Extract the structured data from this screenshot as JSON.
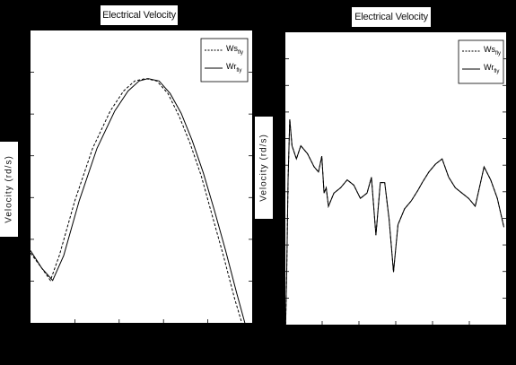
{
  "chart_data": [
    {
      "type": "line",
      "title": "Electrical Velocity",
      "ylabel": "Velocity (rd/s)",
      "xlabel": "",
      "grid": false,
      "legend_position": "top-right",
      "ylim": [
        0,
        1
      ],
      "xlim": [
        0,
        1
      ],
      "series": [
        {
          "name": "Ws",
          "subscript": "fly",
          "style": "dashed",
          "x": [
            0.0,
            0.05,
            0.09,
            0.13,
            0.2,
            0.28,
            0.36,
            0.42,
            0.47,
            0.52,
            0.57,
            0.62,
            0.67,
            0.72,
            0.77,
            0.82,
            0.87,
            0.92,
            0.96,
            0.99
          ],
          "y": [
            0.28,
            0.22,
            0.17,
            0.27,
            0.49,
            0.7,
            0.85,
            0.93,
            0.97,
            0.98,
            0.97,
            0.92,
            0.83,
            0.72,
            0.59,
            0.43,
            0.27,
            0.1,
            -0.02,
            -0.1
          ]
        },
        {
          "name": "Wr",
          "subscript": "fly",
          "style": "solid",
          "x": [
            0.0,
            0.05,
            0.1,
            0.15,
            0.22,
            0.3,
            0.38,
            0.44,
            0.49,
            0.53,
            0.58,
            0.63,
            0.68,
            0.73,
            0.78,
            0.83,
            0.88,
            0.93,
            0.97,
            1.0
          ],
          "y": [
            0.29,
            0.22,
            0.17,
            0.27,
            0.49,
            0.7,
            0.85,
            0.93,
            0.97,
            0.98,
            0.97,
            0.92,
            0.84,
            0.73,
            0.6,
            0.45,
            0.29,
            0.12,
            -0.01,
            -0.1
          ]
        }
      ]
    },
    {
      "type": "line",
      "title": "Electrical Velocity",
      "ylabel": "Velocity (rd/s)",
      "xlabel": "",
      "grid": false,
      "legend_position": "top-right",
      "ylim": [
        0,
        1
      ],
      "xlim": [
        0,
        1
      ],
      "series": [
        {
          "name": "Ws",
          "subscript": "fly",
          "style": "dashed",
          "x": [
            0.0,
            0.006,
            0.012,
            0.02,
            0.03,
            0.05,
            0.07,
            0.1,
            0.13,
            0.15,
            0.165,
            0.175,
            0.185,
            0.195,
            0.22,
            0.25,
            0.28,
            0.31,
            0.34,
            0.37,
            0.39,
            0.41,
            0.43,
            0.45,
            0.47,
            0.49,
            0.51,
            0.54,
            0.57,
            0.6,
            0.62,
            0.65,
            0.68,
            0.71,
            0.74,
            0.77,
            0.8,
            0.83,
            0.86,
            0.9,
            0.93,
            0.96,
            0.99
          ],
          "y": [
            -0.05,
            0.2,
            0.55,
            0.78,
            0.68,
            0.63,
            0.68,
            0.65,
            0.6,
            0.58,
            0.64,
            0.5,
            0.52,
            0.45,
            0.5,
            0.52,
            0.55,
            0.53,
            0.48,
            0.5,
            0.56,
            0.34,
            0.54,
            0.54,
            0.4,
            0.2,
            0.38,
            0.44,
            0.47,
            0.51,
            0.54,
            0.58,
            0.61,
            0.63,
            0.56,
            0.52,
            0.5,
            0.48,
            0.45,
            0.6,
            0.55,
            0.48,
            0.37
          ]
        },
        {
          "name": "Wr",
          "subscript": "fly",
          "style": "solid",
          "x": [
            0.0,
            0.006,
            0.012,
            0.02,
            0.03,
            0.05,
            0.07,
            0.1,
            0.13,
            0.15,
            0.165,
            0.175,
            0.185,
            0.195,
            0.22,
            0.25,
            0.28,
            0.31,
            0.34,
            0.37,
            0.39,
            0.41,
            0.43,
            0.45,
            0.47,
            0.49,
            0.51,
            0.54,
            0.57,
            0.6,
            0.62,
            0.65,
            0.68,
            0.71,
            0.74,
            0.77,
            0.8,
            0.83,
            0.86,
            0.9,
            0.93,
            0.96,
            0.99
          ],
          "y": [
            -0.05,
            0.2,
            0.55,
            0.78,
            0.68,
            0.63,
            0.68,
            0.65,
            0.6,
            0.58,
            0.64,
            0.5,
            0.52,
            0.45,
            0.5,
            0.52,
            0.55,
            0.53,
            0.48,
            0.5,
            0.56,
            0.34,
            0.54,
            0.54,
            0.4,
            0.2,
            0.38,
            0.44,
            0.47,
            0.51,
            0.54,
            0.58,
            0.61,
            0.63,
            0.56,
            0.52,
            0.5,
            0.48,
            0.45,
            0.6,
            0.55,
            0.48,
            0.37
          ]
        }
      ]
    }
  ]
}
